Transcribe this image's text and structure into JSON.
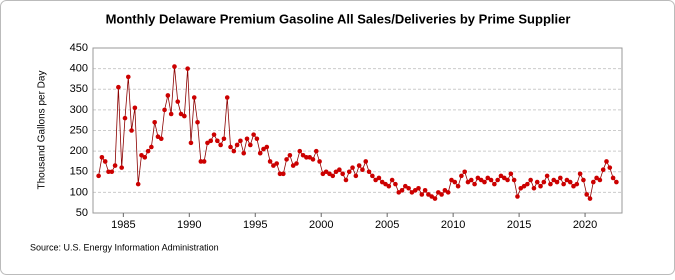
{
  "chart_data": {
    "type": "line",
    "title": "Monthly Delaware Premium Gasoline All Sales/Deliveries by Prime Supplier",
    "y_label": "Thousand Gallons per Day",
    "source": "Source: U.S. Energy Information Administration",
    "color": "#cc0000",
    "grid": true,
    "xlim": [
      1982.7,
      2022.8
    ],
    "xticks": [
      1985,
      1990,
      1995,
      2000,
      2005,
      2010,
      2015,
      2020
    ],
    "ylim": [
      50,
      450
    ],
    "yticks": [
      50,
      100,
      150,
      200,
      250,
      300,
      350,
      400,
      450
    ],
    "x": [
      1983.125,
      1983.375,
      1983.625,
      1983.875,
      1984.125,
      1984.375,
      1984.625,
      1984.875,
      1985.125,
      1985.375,
      1985.625,
      1985.875,
      1986.125,
      1986.375,
      1986.625,
      1986.875,
      1987.125,
      1987.375,
      1987.625,
      1987.875,
      1988.125,
      1988.375,
      1988.625,
      1988.875,
      1989.125,
      1989.375,
      1989.625,
      1989.875,
      1990.125,
      1990.375,
      1990.625,
      1990.875,
      1991.125,
      1991.375,
      1991.625,
      1991.875,
      1992.125,
      1992.375,
      1992.625,
      1992.875,
      1993.125,
      1993.375,
      1993.625,
      1993.875,
      1994.125,
      1994.375,
      1994.625,
      1994.875,
      1995.125,
      1995.375,
      1995.625,
      1995.875,
      1996.125,
      1996.375,
      1996.625,
      1996.875,
      1997.125,
      1997.375,
      1997.625,
      1997.875,
      1998.125,
      1998.375,
      1998.625,
      1998.875,
      1999.125,
      1999.375,
      1999.625,
      1999.875,
      2000.125,
      2000.375,
      2000.625,
      2000.875,
      2001.125,
      2001.375,
      2001.625,
      2001.875,
      2002.125,
      2002.375,
      2002.625,
      2002.875,
      2003.125,
      2003.375,
      2003.625,
      2003.875,
      2004.125,
      2004.375,
      2004.625,
      2004.875,
      2005.125,
      2005.375,
      2005.625,
      2005.875,
      2006.125,
      2006.375,
      2006.625,
      2006.875,
      2007.125,
      2007.375,
      2007.625,
      2007.875,
      2008.125,
      2008.375,
      2008.625,
      2008.875,
      2009.125,
      2009.375,
      2009.625,
      2009.875,
      2010.125,
      2010.375,
      2010.625,
      2010.875,
      2011.125,
      2011.375,
      2011.625,
      2011.875,
      2012.125,
      2012.375,
      2012.625,
      2012.875,
      2013.125,
      2013.375,
      2013.625,
      2013.875,
      2014.125,
      2014.375,
      2014.625,
      2014.875,
      2015.125,
      2015.375,
      2015.625,
      2015.875,
      2016.125,
      2016.375,
      2016.625,
      2016.875,
      2017.125,
      2017.375,
      2017.625,
      2017.875,
      2018.125,
      2018.375,
      2018.625,
      2018.875,
      2019.125,
      2019.375,
      2019.625,
      2019.875,
      2020.125,
      2020.375,
      2020.625,
      2020.875,
      2021.125,
      2021.375,
      2021.625,
      2021.875,
      2022.125,
      2022.375
    ],
    "values": [
      140,
      185,
      175,
      150,
      150,
      165,
      355,
      160,
      280,
      380,
      250,
      305,
      120,
      190,
      185,
      200,
      210,
      270,
      235,
      230,
      300,
      335,
      290,
      405,
      320,
      290,
      285,
      400,
      220,
      330,
      270,
      175,
      175,
      220,
      225,
      240,
      225,
      215,
      230,
      330,
      210,
      200,
      215,
      225,
      195,
      230,
      215,
      240,
      230,
      195,
      205,
      210,
      175,
      165,
      170,
      145,
      145,
      180,
      190,
      165,
      170,
      200,
      190,
      185,
      185,
      180,
      200,
      175,
      145,
      150,
      145,
      140,
      150,
      155,
      145,
      130,
      150,
      160,
      140,
      165,
      155,
      175,
      150,
      140,
      130,
      135,
      125,
      120,
      115,
      130,
      120,
      100,
      105,
      115,
      110,
      100,
      105,
      110,
      95,
      105,
      95,
      90,
      85,
      100,
      95,
      105,
      100,
      130,
      125,
      115,
      140,
      150,
      125,
      130,
      120,
      135,
      130,
      125,
      135,
      130,
      120,
      130,
      140,
      135,
      130,
      145,
      130,
      90,
      110,
      115,
      120,
      130,
      110,
      125,
      115,
      125,
      140,
      120,
      130,
      125,
      135,
      120,
      130,
      125,
      115,
      120,
      145,
      130,
      95,
      85,
      125,
      135,
      130,
      155,
      175,
      160,
      135,
      125
    ]
  }
}
